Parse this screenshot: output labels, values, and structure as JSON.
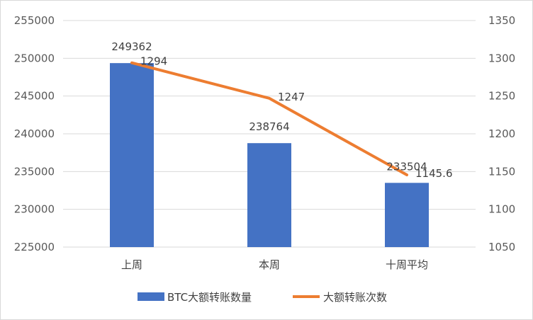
{
  "chart_data": {
    "type": "bar",
    "categories": [
      "上周",
      "本周",
      "十周平均"
    ],
    "series": [
      {
        "name": "BTC大额转账数量",
        "type": "bar",
        "axis": "left",
        "color": "#4472C4",
        "values": [
          249362,
          238764,
          233504
        ],
        "labels": [
          "249362",
          "238764",
          "233504"
        ]
      },
      {
        "name": "大额转账次数",
        "type": "line",
        "axis": "right",
        "color": "#ED7D31",
        "values": [
          1294,
          1247,
          1145.6
        ],
        "labels": [
          "1294",
          "1247",
          "1145.6"
        ]
      }
    ],
    "left_axis": {
      "ylim": [
        225000,
        255000
      ],
      "ticks": [
        "225000",
        "230000",
        "235000",
        "240000",
        "245000",
        "250000",
        "255000"
      ]
    },
    "right_axis": {
      "ylim": [
        1050,
        1350
      ],
      "ticks": [
        "1050",
        "1100",
        "1150",
        "1200",
        "1250",
        "1300",
        "1350"
      ]
    },
    "grid": true,
    "legend_position": "bottom"
  }
}
